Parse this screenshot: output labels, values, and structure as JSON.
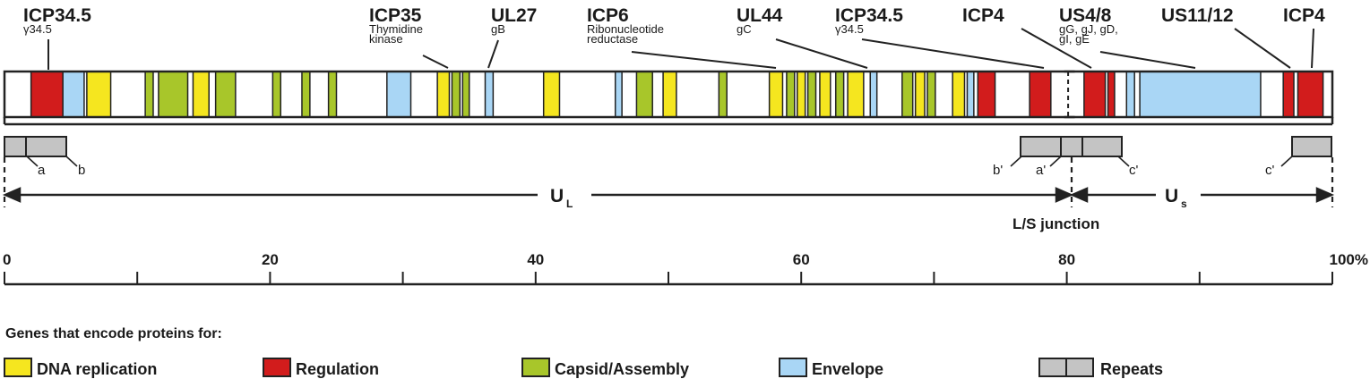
{
  "colors": {
    "dna_replication": "#f5e61f",
    "regulation": "#d21c1c",
    "capsid": "#a8c62a",
    "envelope": "#a9d6f5",
    "repeats": "#c4c4c4",
    "outline": "#222222"
  },
  "gene_labels": [
    {
      "id": "icp34-5-left",
      "name": "ICP34.5",
      "sub": [
        "γ34.5"
      ]
    },
    {
      "id": "icp35",
      "name": "ICP35",
      "sub": [
        "Thymidine",
        "kinase"
      ]
    },
    {
      "id": "ul27",
      "name": "UL27",
      "sub": [
        "gB"
      ]
    },
    {
      "id": "icp6",
      "name": "ICP6",
      "sub": [
        "Ribonucleotide",
        "reductase"
      ]
    },
    {
      "id": "ul44",
      "name": "UL44",
      "sub": [
        "gC"
      ]
    },
    {
      "id": "icp34-5-right",
      "name": "ICP34.5",
      "sub": [
        "γ34.5"
      ]
    },
    {
      "id": "icp4-left",
      "name": "ICP4",
      "sub": []
    },
    {
      "id": "us4-8",
      "name": "US4/8",
      "sub": [
        "gG, gJ, gD,",
        "gI, gE"
      ]
    },
    {
      "id": "us11-12",
      "name": "US11/12",
      "sub": []
    },
    {
      "id": "icp4-right",
      "name": "ICP4",
      "sub": []
    }
  ],
  "genome_segments": [
    {
      "start": 2.0,
      "end": 4.4,
      "cat": "regulation"
    },
    {
      "start": 4.4,
      "end": 6.0,
      "cat": "envelope"
    },
    {
      "start": 6.2,
      "end": 8.0,
      "cat": "dna_replication"
    },
    {
      "start": 10.6,
      "end": 11.2,
      "cat": "capsid"
    },
    {
      "start": 11.6,
      "end": 13.8,
      "cat": "capsid"
    },
    {
      "start": 14.2,
      "end": 15.4,
      "cat": "dna_replication"
    },
    {
      "start": 15.9,
      "end": 17.4,
      "cat": "capsid"
    },
    {
      "start": 20.2,
      "end": 20.8,
      "cat": "capsid"
    },
    {
      "start": 22.4,
      "end": 23.0,
      "cat": "capsid"
    },
    {
      "start": 24.4,
      "end": 25.0,
      "cat": "capsid"
    },
    {
      "start": 28.8,
      "end": 30.6,
      "cat": "envelope"
    },
    {
      "start": 32.6,
      "end": 33.5,
      "cat": "dna_replication"
    },
    {
      "start": 33.7,
      "end": 34.3,
      "cat": "capsid"
    },
    {
      "start": 34.5,
      "end": 35.0,
      "cat": "capsid"
    },
    {
      "start": 36.2,
      "end": 36.8,
      "cat": "envelope"
    },
    {
      "start": 40.6,
      "end": 41.8,
      "cat": "dna_replication"
    },
    {
      "start": 46.0,
      "end": 46.5,
      "cat": "envelope"
    },
    {
      "start": 47.6,
      "end": 48.8,
      "cat": "capsid"
    },
    {
      "start": 49.6,
      "end": 50.6,
      "cat": "dna_replication"
    },
    {
      "start": 53.8,
      "end": 54.4,
      "cat": "capsid"
    },
    {
      "start": 57.6,
      "end": 58.6,
      "cat": "dna_replication"
    },
    {
      "start": 58.9,
      "end": 59.5,
      "cat": "capsid"
    },
    {
      "start": 59.7,
      "end": 60.3,
      "cat": "dna_replication"
    },
    {
      "start": 60.5,
      "end": 61.1,
      "cat": "capsid"
    },
    {
      "start": 61.4,
      "end": 62.2,
      "cat": "dna_replication"
    },
    {
      "start": 62.6,
      "end": 63.2,
      "cat": "capsid"
    },
    {
      "start": 63.5,
      "end": 64.7,
      "cat": "dna_replication"
    },
    {
      "start": 65.2,
      "end": 65.7,
      "cat": "envelope"
    },
    {
      "start": 67.6,
      "end": 68.4,
      "cat": "capsid"
    },
    {
      "start": 68.6,
      "end": 69.3,
      "cat": "dna_replication"
    },
    {
      "start": 69.5,
      "end": 70.1,
      "cat": "capsid"
    },
    {
      "start": 71.4,
      "end": 72.3,
      "cat": "dna_replication"
    },
    {
      "start": 72.5,
      "end": 73.0,
      "cat": "envelope"
    },
    {
      "start": 73.3,
      "end": 74.6,
      "cat": "regulation"
    },
    {
      "start": 77.2,
      "end": 78.8,
      "cat": "regulation"
    },
    {
      "start": 81.3,
      "end": 82.9,
      "cat": "regulation"
    },
    {
      "start": 83.1,
      "end": 83.6,
      "cat": "regulation"
    },
    {
      "start": 84.5,
      "end": 85.1,
      "cat": "envelope"
    },
    {
      "start": 85.5,
      "end": 94.6,
      "cat": "envelope"
    },
    {
      "start": 96.3,
      "end": 97.1,
      "cat": "regulation"
    },
    {
      "start": 97.4,
      "end": 99.3,
      "cat": "regulation"
    }
  ],
  "repeats": [
    "a",
    "b",
    "b'",
    "a'",
    "c'",
    "c'"
  ],
  "regions": {
    "ul": {
      "main": "U",
      "sub": "L"
    },
    "us": {
      "main": "U",
      "sub": "s"
    },
    "junction": "L/S junction"
  },
  "scale": {
    "ticks": [
      "0",
      "20",
      "40",
      "60",
      "80",
      "100%"
    ]
  },
  "legend": {
    "title": "Genes that encode proteins for:",
    "items": [
      {
        "label": "DNA replication",
        "cat": "dna_replication"
      },
      {
        "label": "Regulation",
        "cat": "regulation"
      },
      {
        "label": "Capsid/Assembly",
        "cat": "capsid"
      },
      {
        "label": "Envelope",
        "cat": "envelope"
      },
      {
        "label": "Repeats",
        "cat": "repeats"
      }
    ]
  }
}
